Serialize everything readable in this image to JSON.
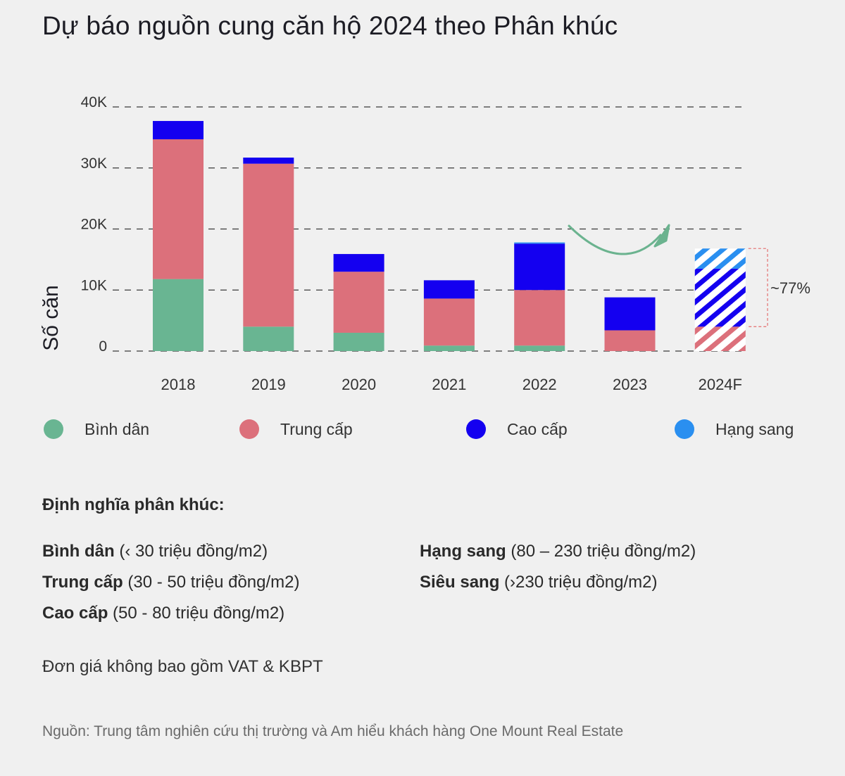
{
  "title": "Dự báo nguồn cung căn hộ 2024 theo Phân khúc",
  "colors": {
    "binh_dan": "#69b592",
    "trung_cap": "#dc707b",
    "cao_cap": "#1400f0",
    "hang_sang": "#2a8ff0",
    "arrow": "#6bb38f",
    "bracket": "#e57a7a"
  },
  "chart_data": {
    "type": "bar",
    "stacked": true,
    "categories": [
      "2018",
      "2019",
      "2020",
      "2021",
      "2022",
      "2023",
      "2024F"
    ],
    "series": [
      {
        "name": "Bình dân",
        "color": "#69b592",
        "values": [
          11800,
          4000,
          3000,
          900,
          900,
          0,
          0
        ]
      },
      {
        "name": "Trung cấp",
        "color": "#dc707b",
        "values": [
          22900,
          26700,
          10000,
          7700,
          9100,
          3400,
          4000
        ]
      },
      {
        "name": "Cao cấp",
        "color": "#1400f0",
        "values": [
          3000,
          1000,
          2900,
          3000,
          7600,
          5400,
          9500
        ]
      },
      {
        "name": "Hạng sang",
        "color": "#2a8ff0",
        "values": [
          0,
          0,
          0,
          0,
          200,
          0,
          3300
        ]
      }
    ],
    "forecast_category": "2024F",
    "ylabel": "Số căn",
    "ylim": [
      0,
      40000
    ],
    "yticks": [
      0,
      10000,
      20000,
      30000,
      40000
    ],
    "ytick_labels": [
      "0",
      "10K",
      "20K",
      "30K",
      "40K"
    ],
    "grid": "dashed horizontal",
    "annotation": "~77%",
    "legend_position": "bottom"
  },
  "legend": [
    {
      "label": "Bình dân",
      "color": "#69b592"
    },
    {
      "label": "Trung cấp",
      "color": "#dc707b"
    },
    {
      "label": "Cao cấp",
      "color": "#1400f0"
    },
    {
      "label": "Hạng sang",
      "color": "#2a8ff0"
    }
  ],
  "definitions": {
    "heading": "Định nghĩa phân khúc:",
    "items": [
      {
        "name": "Bình dân",
        "range": "(‹ 30 triệu đồng/m2)"
      },
      {
        "name": "Trung cấp",
        "range": "(30 - 50 triệu đồng/m2)"
      },
      {
        "name": "Cao cấp",
        "range": "(50 - 80 triệu đồng/m2)"
      },
      {
        "name": "Hạng sang",
        "range": "(80 – 230 triệu đồng/m2)"
      },
      {
        "name": "Siêu sang",
        "range": "(›230 triệu đồng/m2)"
      }
    ]
  },
  "note": "Đơn giá không bao gồm VAT & KBPT",
  "source": "Nguồn: Trung tâm nghiên cứu thị trường và Am hiểu khách hàng One Mount Real Estate"
}
